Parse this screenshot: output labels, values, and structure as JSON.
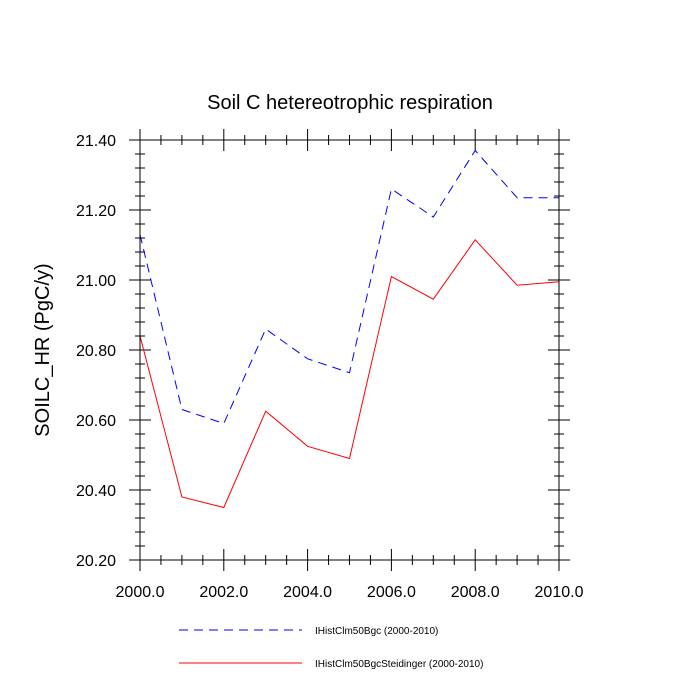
{
  "chart_data": {
    "type": "line",
    "title": "Soil C hetereotrophic respiration",
    "xlabel": "",
    "ylabel": "SOILC_HR  (PgC/y)",
    "xlim": [
      2000,
      2010
    ],
    "ylim": [
      20.2,
      21.4
    ],
    "x_ticks": [
      2000,
      2002,
      2004,
      2006,
      2008,
      2010
    ],
    "x_tick_labels": [
      "2000.0",
      "2002.0",
      "2004.0",
      "2006.0",
      "2008.0",
      "2010.0"
    ],
    "y_ticks": [
      20.2,
      20.4,
      20.6,
      20.8,
      21.0,
      21.2,
      21.4
    ],
    "y_tick_labels": [
      "20.20",
      "20.40",
      "20.60",
      "20.80",
      "21.00",
      "21.20",
      "21.40"
    ],
    "grid": false,
    "legend_position": "bottom",
    "x": [
      2000,
      2001,
      2002,
      2003,
      2004,
      2005,
      2006,
      2007,
      2008,
      2009,
      2010
    ],
    "series": [
      {
        "name": "IHistClm50Bgc (2000-2010)",
        "color": "#0000ff",
        "style": "dashed",
        "values": [
          21.13,
          20.63,
          20.59,
          20.86,
          20.775,
          20.735,
          21.26,
          21.18,
          21.37,
          21.235,
          21.235
        ]
      },
      {
        "name": "IHistClm50BgcSteidinger (2000-2010)",
        "color": "#ff0000",
        "style": "solid",
        "values": [
          20.84,
          20.38,
          20.35,
          20.625,
          20.525,
          20.49,
          21.01,
          20.945,
          21.115,
          20.985,
          20.995
        ]
      }
    ]
  }
}
